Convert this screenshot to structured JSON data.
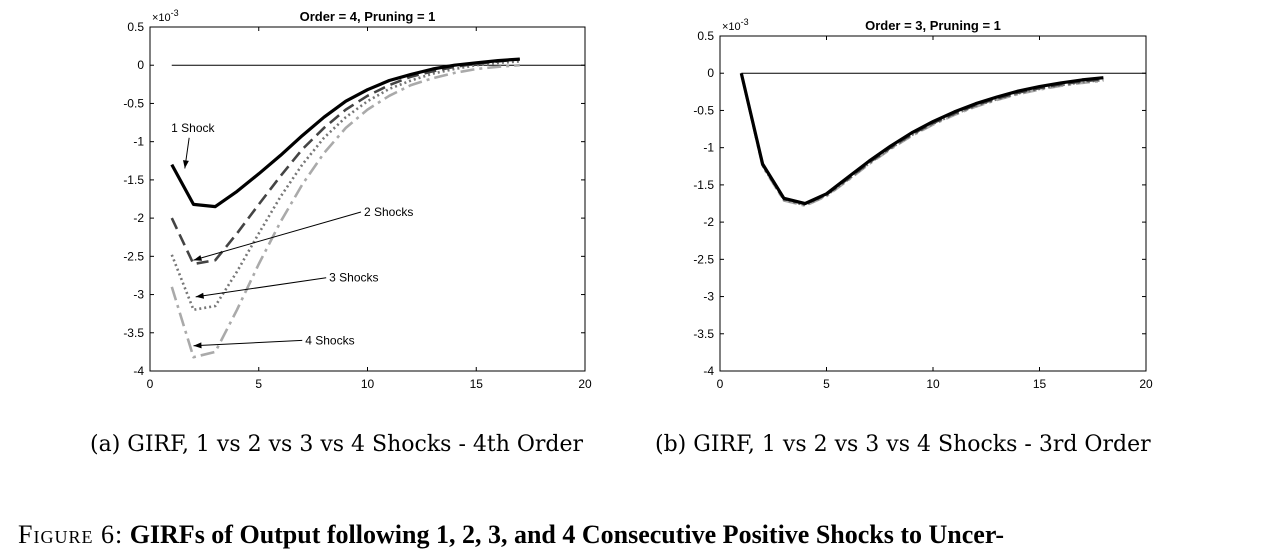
{
  "figure": {
    "label": "Figure 6:",
    "text": "GIRFs of Output following 1, 2, 3, and 4 Consecutive Positive Shocks to Uncer-"
  },
  "chart_data": [
    {
      "type": "line",
      "title": "Order = 4, Pruning = 1",
      "caption": "(a) GIRF, 1 vs 2 vs 3 vs 4 Shocks - 4th Order",
      "exponent_label": "×10",
      "exponent_power": "-3",
      "xlim": [
        0,
        20
      ],
      "ylim": [
        -4,
        0.5
      ],
      "xticks": [
        0,
        5,
        10,
        15,
        20
      ],
      "yticks": [
        0.5,
        0,
        -0.5,
        -1,
        -1.5,
        -2,
        -2.5,
        -3,
        -3.5,
        -4
      ],
      "x": [
        1,
        2,
        3,
        4,
        5,
        6,
        7,
        8,
        9,
        10,
        11,
        12,
        13,
        14,
        15,
        16,
        17
      ],
      "series": [
        {
          "name": "1 Shock",
          "color": "#000000",
          "dash": "solid",
          "values": [
            -1.3,
            -1.82,
            -1.85,
            -1.65,
            -1.42,
            -1.18,
            -0.92,
            -0.68,
            -0.47,
            -0.32,
            -0.2,
            -0.12,
            -0.05,
            0.0,
            0.03,
            0.06,
            0.08
          ]
        },
        {
          "name": "2 Shocks",
          "color": "#444444",
          "dash": "dashed",
          "values": [
            -2.0,
            -2.6,
            -2.55,
            -2.2,
            -1.82,
            -1.45,
            -1.1,
            -0.82,
            -0.58,
            -0.4,
            -0.26,
            -0.15,
            -0.08,
            -0.02,
            0.02,
            0.05,
            0.08
          ]
        },
        {
          "name": "3 Shocks",
          "color": "#777777",
          "dash": "dotted",
          "values": [
            -2.48,
            -3.2,
            -3.15,
            -2.7,
            -2.2,
            -1.72,
            -1.3,
            -0.95,
            -0.68,
            -0.47,
            -0.31,
            -0.2,
            -0.11,
            -0.05,
            0.0,
            0.03,
            0.05
          ]
        },
        {
          "name": "4 Shocks",
          "color": "#aaaaaa",
          "dash": "dashdot",
          "values": [
            -2.9,
            -3.82,
            -3.75,
            -3.2,
            -2.6,
            -2.05,
            -1.56,
            -1.15,
            -0.82,
            -0.58,
            -0.4,
            -0.26,
            -0.17,
            -0.1,
            -0.05,
            -0.02,
            0.0
          ]
        }
      ],
      "annotations": [
        {
          "text": "1 Shock",
          "to": [
            1.6,
            -1.35
          ],
          "from": [
            1.8,
            -0.95
          ]
        },
        {
          "text": "2 Shocks",
          "to": [
            2.0,
            -2.55
          ],
          "from": [
            9.7,
            -1.92
          ]
        },
        {
          "text": "3 Shocks",
          "to": [
            2.1,
            -3.03
          ],
          "from": [
            8.1,
            -2.78
          ]
        },
        {
          "text": "4 Shocks",
          "to": [
            2.0,
            -3.67
          ],
          "from": [
            7.0,
            -3.6
          ]
        }
      ]
    },
    {
      "type": "line",
      "title": "Order = 3, Pruning = 1",
      "caption": "(b) GIRF, 1 vs 2 vs 3 vs 4 Shocks - 3rd Order",
      "exponent_label": "×10",
      "exponent_power": "-3",
      "xlim": [
        0,
        20
      ],
      "ylim": [
        -4,
        0.5
      ],
      "xticks": [
        0,
        5,
        10,
        15,
        20
      ],
      "yticks": [
        0.5,
        0,
        -0.5,
        -1,
        -1.5,
        -2,
        -2.5,
        -3,
        -3.5,
        -4
      ],
      "x": [
        1,
        2,
        3,
        4,
        5,
        6,
        7,
        8,
        9,
        10,
        11,
        12,
        13,
        14,
        15,
        16,
        17,
        18
      ],
      "series": [
        {
          "color": "#000000",
          "dash": "solid",
          "values": [
            0.0,
            -1.22,
            -1.68,
            -1.75,
            -1.62,
            -1.4,
            -1.18,
            -0.98,
            -0.8,
            -0.65,
            -0.52,
            -0.41,
            -0.32,
            -0.24,
            -0.18,
            -0.13,
            -0.09,
            -0.06
          ]
        },
        {
          "color": "#444444",
          "dash": "dashed",
          "values": [
            0.0,
            -1.23,
            -1.69,
            -1.76,
            -1.63,
            -1.42,
            -1.2,
            -1.0,
            -0.82,
            -0.67,
            -0.54,
            -0.43,
            -0.34,
            -0.26,
            -0.2,
            -0.15,
            -0.11,
            -0.08
          ]
        },
        {
          "color": "#777777",
          "dash": "dotted",
          "values": [
            0.0,
            -1.24,
            -1.7,
            -1.77,
            -1.64,
            -1.43,
            -1.21,
            -1.01,
            -0.83,
            -0.68,
            -0.55,
            -0.44,
            -0.35,
            -0.27,
            -0.21,
            -0.16,
            -0.12,
            -0.09
          ]
        },
        {
          "color": "#aaaaaa",
          "dash": "dashdot",
          "values": [
            0.0,
            -1.25,
            -1.71,
            -1.78,
            -1.65,
            -1.44,
            -1.22,
            -1.02,
            -0.84,
            -0.69,
            -0.56,
            -0.45,
            -0.36,
            -0.28,
            -0.22,
            -0.17,
            -0.13,
            -0.1
          ]
        }
      ],
      "annotations": []
    }
  ]
}
